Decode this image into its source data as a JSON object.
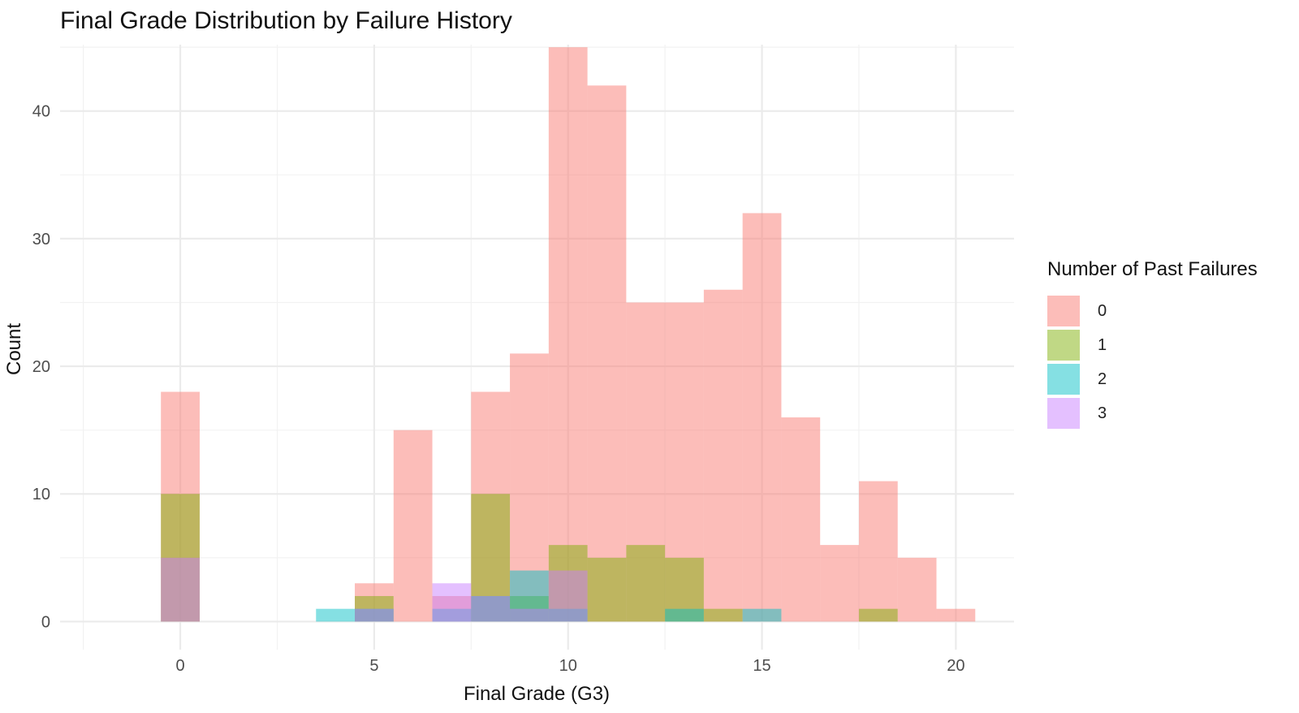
{
  "chart_data": {
    "type": "bar",
    "title": "Final Grade Distribution by Failure History",
    "xlabel": "Final Grade (G3)",
    "ylabel": "Count",
    "xlim": [
      -3.1,
      21.5
    ],
    "ylim": [
      -2.2,
      45.2
    ],
    "xticks": [
      0,
      5,
      10,
      15,
      20
    ],
    "xtick_labels": [
      "0",
      "5",
      "10",
      "15",
      "20"
    ],
    "yticks": [
      0,
      10,
      20,
      30,
      40
    ],
    "ytick_labels": [
      "0",
      "10",
      "20",
      "30",
      "40"
    ],
    "grid": true,
    "bin_width": 1,
    "legend": {
      "title": "Number of Past Failures",
      "placement": "right"
    },
    "x": [
      0,
      1,
      2,
      3,
      4,
      5,
      6,
      7,
      8,
      9,
      10,
      11,
      12,
      13,
      14,
      15,
      16,
      17,
      18,
      19,
      20
    ],
    "series": [
      {
        "name": "0",
        "color": "#F8766D",
        "values": [
          18,
          0,
          0,
          0,
          0,
          3,
          15,
          2,
          18,
          21,
          45,
          42,
          25,
          25,
          26,
          32,
          16,
          6,
          11,
          5,
          1
        ]
      },
      {
        "name": "1",
        "color": "#7CAE00",
        "values": [
          10,
          0,
          0,
          0,
          0,
          2,
          0,
          0,
          10,
          2,
          6,
          5,
          6,
          5,
          1,
          0,
          0,
          0,
          1,
          0,
          0
        ]
      },
      {
        "name": "2",
        "color": "#00BFC4",
        "values": [
          0,
          0,
          0,
          0,
          1,
          1,
          0,
          1,
          2,
          4,
          1,
          0,
          0,
          1,
          0,
          1,
          0,
          0,
          0,
          0,
          0
        ]
      },
      {
        "name": "3",
        "color": "#C77CFF",
        "values": [
          5,
          0,
          0,
          0,
          0,
          1,
          0,
          3,
          2,
          1,
          4,
          0,
          0,
          0,
          0,
          0,
          0,
          0,
          0,
          0,
          0
        ]
      }
    ]
  }
}
